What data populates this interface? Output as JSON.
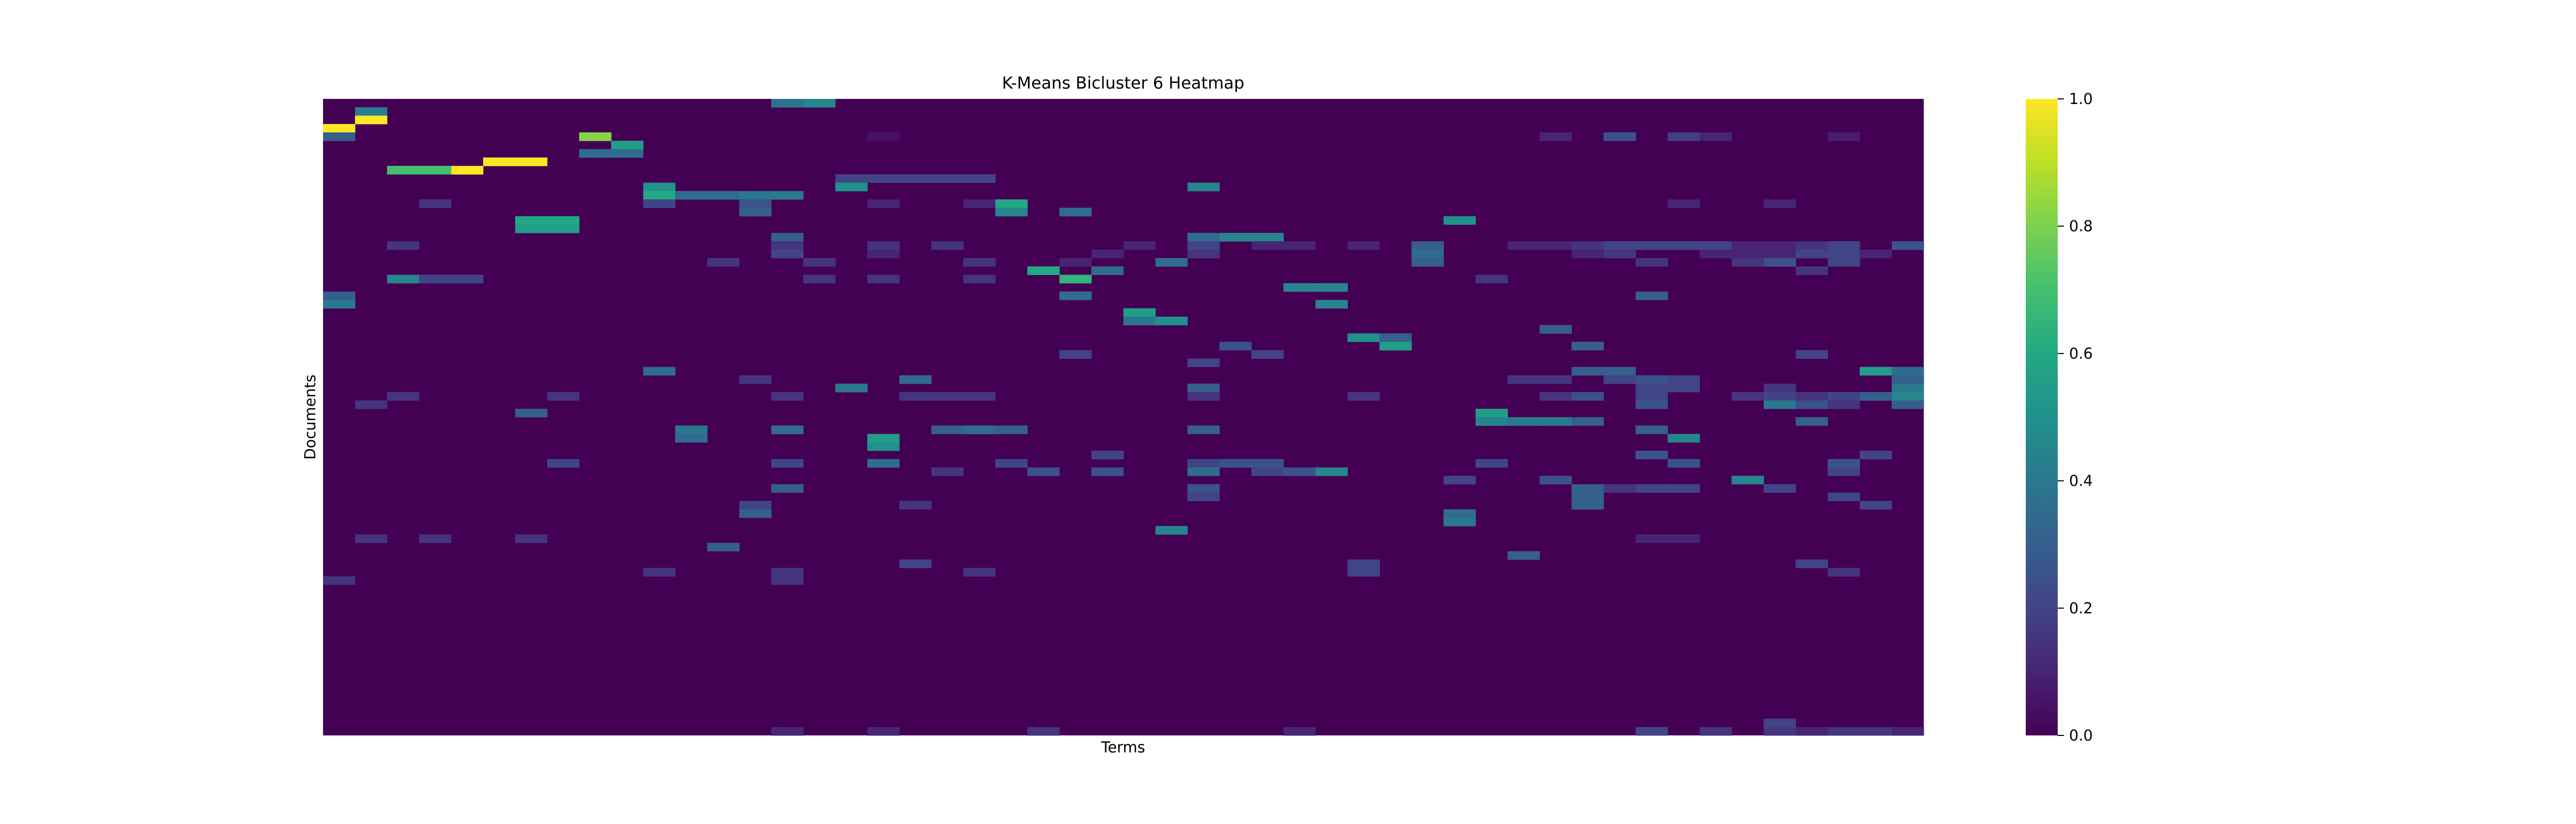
{
  "chart_data": {
    "type": "heatmap",
    "title": "K-Means Bicluster 6 Heatmap",
    "xlabel": "Terms",
    "ylabel": "Documents",
    "n_rows": 76,
    "n_cols": 50,
    "colormap": "viridis",
    "background_value": 0.0,
    "colorbar": {
      "range": [
        0.0,
        1.0
      ],
      "ticks": [
        "0.0",
        "0.2",
        "0.4",
        "0.6",
        "0.8",
        "1.0"
      ]
    },
    "cells": [
      [
        0,
        14,
        0.38
      ],
      [
        0,
        15,
        0.45
      ],
      [
        1,
        1,
        0.42
      ],
      [
        2,
        1,
        1.0
      ],
      [
        3,
        0,
        1.0
      ],
      [
        4,
        0,
        0.3
      ],
      [
        4,
        8,
        0.82
      ],
      [
        5,
        9,
        0.55
      ],
      [
        4,
        17,
        0.05
      ],
      [
        4,
        38,
        0.1
      ],
      [
        4,
        40,
        0.25
      ],
      [
        4,
        42,
        0.18
      ],
      [
        4,
        43,
        0.1
      ],
      [
        4,
        47,
        0.08
      ],
      [
        6,
        8,
        0.35
      ],
      [
        6,
        9,
        0.35
      ],
      [
        7,
        5,
        1.0
      ],
      [
        7,
        6,
        1.0
      ],
      [
        8,
        4,
        1.0
      ],
      [
        8,
        2,
        0.7
      ],
      [
        8,
        3,
        0.7
      ],
      [
        9,
        16,
        0.2
      ],
      [
        9,
        17,
        0.2
      ],
      [
        9,
        18,
        0.2
      ],
      [
        9,
        19,
        0.2
      ],
      [
        9,
        20,
        0.2
      ],
      [
        10,
        16,
        0.5
      ],
      [
        10,
        27,
        0.45
      ],
      [
        10,
        10,
        0.5
      ],
      [
        11,
        10,
        0.6
      ],
      [
        11,
        11,
        0.35
      ],
      [
        11,
        12,
        0.35
      ],
      [
        11,
        13,
        0.4
      ],
      [
        11,
        14,
        0.4
      ],
      [
        12,
        3,
        0.15
      ],
      [
        12,
        10,
        0.2
      ],
      [
        12,
        13,
        0.25
      ],
      [
        12,
        17,
        0.1
      ],
      [
        12,
        20,
        0.1
      ],
      [
        12,
        21,
        0.6
      ],
      [
        12,
        42,
        0.1
      ],
      [
        12,
        45,
        0.1
      ],
      [
        13,
        13,
        0.3
      ],
      [
        13,
        21,
        0.45
      ],
      [
        13,
        23,
        0.35
      ],
      [
        14,
        6,
        0.6
      ],
      [
        14,
        7,
        0.6
      ],
      [
        14,
        35,
        0.5
      ],
      [
        15,
        6,
        0.55
      ],
      [
        15,
        7,
        0.55
      ],
      [
        16,
        14,
        0.3
      ],
      [
        16,
        27,
        0.35
      ],
      [
        16,
        28,
        0.45
      ],
      [
        16,
        29,
        0.45
      ],
      [
        17,
        2,
        0.15
      ],
      [
        17,
        14,
        0.15
      ],
      [
        17,
        17,
        0.15
      ],
      [
        17,
        19,
        0.15
      ],
      [
        17,
        25,
        0.1
      ],
      [
        17,
        27,
        0.2
      ],
      [
        17,
        29,
        0.1
      ],
      [
        17,
        30,
        0.1
      ],
      [
        17,
        32,
        0.1
      ],
      [
        17,
        34,
        0.3
      ],
      [
        17,
        37,
        0.1
      ],
      [
        17,
        38,
        0.1
      ],
      [
        17,
        39,
        0.15
      ],
      [
        17,
        40,
        0.2
      ],
      [
        17,
        41,
        0.2
      ],
      [
        17,
        42,
        0.2
      ],
      [
        17,
        43,
        0.2
      ],
      [
        17,
        44,
        0.1
      ],
      [
        17,
        45,
        0.1
      ],
      [
        17,
        46,
        0.15
      ],
      [
        17,
        47,
        0.2
      ],
      [
        17,
        49,
        0.25
      ],
      [
        18,
        14,
        0.2
      ],
      [
        18,
        17,
        0.1
      ],
      [
        18,
        24,
        0.1
      ],
      [
        18,
        27,
        0.15
      ],
      [
        18,
        34,
        0.35
      ],
      [
        18,
        39,
        0.1
      ],
      [
        18,
        40,
        0.15
      ],
      [
        18,
        43,
        0.1
      ],
      [
        18,
        44,
        0.1
      ],
      [
        18,
        45,
        0.1
      ],
      [
        18,
        46,
        0.2
      ],
      [
        18,
        47,
        0.2
      ],
      [
        18,
        48,
        0.1
      ],
      [
        19,
        12,
        0.15
      ],
      [
        19,
        15,
        0.15
      ],
      [
        19,
        20,
        0.15
      ],
      [
        19,
        23,
        0.1
      ],
      [
        19,
        26,
        0.35
      ],
      [
        19,
        34,
        0.3
      ],
      [
        19,
        41,
        0.15
      ],
      [
        19,
        44,
        0.15
      ],
      [
        19,
        45,
        0.25
      ],
      [
        19,
        47,
        0.2
      ],
      [
        20,
        22,
        0.6
      ],
      [
        20,
        24,
        0.35
      ],
      [
        20,
        46,
        0.15
      ],
      [
        21,
        2,
        0.45
      ],
      [
        21,
        3,
        0.2
      ],
      [
        21,
        4,
        0.2
      ],
      [
        21,
        15,
        0.15
      ],
      [
        21,
        17,
        0.15
      ],
      [
        21,
        20,
        0.15
      ],
      [
        21,
        23,
        0.65
      ],
      [
        21,
        36,
        0.15
      ],
      [
        22,
        30,
        0.45
      ],
      [
        22,
        31,
        0.45
      ],
      [
        23,
        0,
        0.3
      ],
      [
        23,
        23,
        0.35
      ],
      [
        23,
        41,
        0.3
      ],
      [
        24,
        0,
        0.4
      ],
      [
        24,
        31,
        0.45
      ],
      [
        25,
        25,
        0.55
      ],
      [
        26,
        25,
        0.4
      ],
      [
        26,
        26,
        0.5
      ],
      [
        27,
        38,
        0.3
      ],
      [
        28,
        32,
        0.5
      ],
      [
        28,
        33,
        0.3
      ],
      [
        29,
        28,
        0.25
      ],
      [
        29,
        33,
        0.55
      ],
      [
        29,
        39,
        0.3
      ],
      [
        30,
        23,
        0.2
      ],
      [
        30,
        29,
        0.2
      ],
      [
        30,
        46,
        0.2
      ],
      [
        31,
        27,
        0.2
      ],
      [
        32,
        10,
        0.35
      ],
      [
        32,
        39,
        0.3
      ],
      [
        32,
        40,
        0.3
      ],
      [
        32,
        48,
        0.55
      ],
      [
        32,
        49,
        0.35
      ],
      [
        33,
        13,
        0.15
      ],
      [
        33,
        18,
        0.35
      ],
      [
        33,
        37,
        0.15
      ],
      [
        33,
        38,
        0.15
      ],
      [
        33,
        40,
        0.2
      ],
      [
        33,
        41,
        0.25
      ],
      [
        33,
        42,
        0.2
      ],
      [
        33,
        49,
        0.3
      ],
      [
        34,
        16,
        0.4
      ],
      [
        34,
        27,
        0.3
      ],
      [
        34,
        41,
        0.2
      ],
      [
        34,
        42,
        0.2
      ],
      [
        34,
        45,
        0.15
      ],
      [
        34,
        49,
        0.4
      ],
      [
        35,
        2,
        0.15
      ],
      [
        35,
        7,
        0.15
      ],
      [
        35,
        14,
        0.15
      ],
      [
        35,
        18,
        0.15
      ],
      [
        35,
        19,
        0.15
      ],
      [
        35,
        20,
        0.15
      ],
      [
        35,
        27,
        0.15
      ],
      [
        35,
        32,
        0.15
      ],
      [
        35,
        38,
        0.15
      ],
      [
        35,
        39,
        0.25
      ],
      [
        35,
        41,
        0.2
      ],
      [
        35,
        44,
        0.15
      ],
      [
        35,
        45,
        0.2
      ],
      [
        35,
        46,
        0.15
      ],
      [
        35,
        47,
        0.2
      ],
      [
        35,
        48,
        0.3
      ],
      [
        35,
        49,
        0.45
      ],
      [
        36,
        1,
        0.15
      ],
      [
        36,
        41,
        0.25
      ],
      [
        36,
        45,
        0.4
      ],
      [
        36,
        46,
        0.25
      ],
      [
        36,
        47,
        0.15
      ],
      [
        36,
        49,
        0.3
      ],
      [
        37,
        6,
        0.3
      ],
      [
        37,
        36,
        0.55
      ],
      [
        38,
        36,
        0.45
      ],
      [
        38,
        37,
        0.4
      ],
      [
        38,
        38,
        0.4
      ],
      [
        38,
        39,
        0.3
      ],
      [
        38,
        46,
        0.3
      ],
      [
        39,
        11,
        0.4
      ],
      [
        39,
        14,
        0.35
      ],
      [
        39,
        19,
        0.3
      ],
      [
        39,
        20,
        0.35
      ],
      [
        39,
        21,
        0.3
      ],
      [
        39,
        27,
        0.3
      ],
      [
        39,
        41,
        0.3
      ],
      [
        40,
        11,
        0.35
      ],
      [
        40,
        17,
        0.55
      ],
      [
        40,
        42,
        0.45
      ],
      [
        41,
        17,
        0.5
      ],
      [
        42,
        24,
        0.2
      ],
      [
        42,
        41,
        0.25
      ],
      [
        42,
        48,
        0.2
      ],
      [
        43,
        7,
        0.2
      ],
      [
        43,
        14,
        0.2
      ],
      [
        43,
        17,
        0.35
      ],
      [
        43,
        21,
        0.2
      ],
      [
        43,
        27,
        0.2
      ],
      [
        43,
        28,
        0.25
      ],
      [
        43,
        29,
        0.25
      ],
      [
        43,
        36,
        0.2
      ],
      [
        43,
        42,
        0.25
      ],
      [
        43,
        47,
        0.25
      ],
      [
        44,
        19,
        0.15
      ],
      [
        44,
        22,
        0.25
      ],
      [
        44,
        24,
        0.25
      ],
      [
        44,
        27,
        0.35
      ],
      [
        44,
        29,
        0.2
      ],
      [
        44,
        30,
        0.25
      ],
      [
        44,
        31,
        0.45
      ],
      [
        44,
        47,
        0.2
      ],
      [
        45,
        35,
        0.2
      ],
      [
        45,
        38,
        0.25
      ],
      [
        45,
        44,
        0.45
      ],
      [
        46,
        14,
        0.3
      ],
      [
        46,
        27,
        0.25
      ],
      [
        46,
        39,
        0.3
      ],
      [
        46,
        40,
        0.15
      ],
      [
        46,
        41,
        0.2
      ],
      [
        46,
        42,
        0.2
      ],
      [
        46,
        45,
        0.2
      ],
      [
        47,
        27,
        0.2
      ],
      [
        47,
        39,
        0.3
      ],
      [
        47,
        47,
        0.2
      ],
      [
        48,
        13,
        0.2
      ],
      [
        48,
        18,
        0.15
      ],
      [
        48,
        39,
        0.3
      ],
      [
        48,
        48,
        0.2
      ],
      [
        49,
        13,
        0.3
      ],
      [
        49,
        35,
        0.35
      ],
      [
        50,
        35,
        0.4
      ],
      [
        51,
        26,
        0.45
      ],
      [
        52,
        1,
        0.15
      ],
      [
        52,
        3,
        0.15
      ],
      [
        52,
        6,
        0.15
      ],
      [
        52,
        41,
        0.1
      ],
      [
        52,
        42,
        0.1
      ],
      [
        53,
        12,
        0.3
      ],
      [
        54,
        37,
        0.3
      ],
      [
        55,
        18,
        0.2
      ],
      [
        55,
        32,
        0.2
      ],
      [
        55,
        46,
        0.2
      ],
      [
        56,
        10,
        0.15
      ],
      [
        56,
        14,
        0.15
      ],
      [
        56,
        20,
        0.15
      ],
      [
        56,
        32,
        0.2
      ],
      [
        56,
        47,
        0.15
      ],
      [
        57,
        0,
        0.15
      ],
      [
        57,
        14,
        0.15
      ],
      [
        75,
        14,
        0.1
      ],
      [
        75,
        17,
        0.1
      ],
      [
        75,
        22,
        0.15
      ],
      [
        75,
        30,
        0.1
      ],
      [
        75,
        41,
        0.2
      ],
      [
        75,
        43,
        0.15
      ],
      [
        75,
        45,
        0.15
      ],
      [
        75,
        46,
        0.1
      ],
      [
        75,
        47,
        0.15
      ],
      [
        75,
        48,
        0.15
      ],
      [
        75,
        49,
        0.1
      ],
      [
        74,
        45,
        0.2
      ]
    ]
  }
}
